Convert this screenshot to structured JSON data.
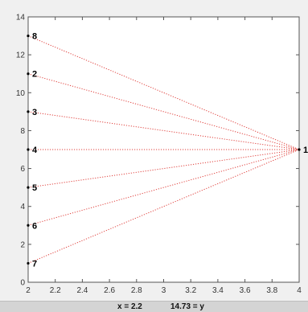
{
  "chart_data": {
    "type": "scatter",
    "title": "",
    "xlabel": "",
    "ylabel": "",
    "xlim": [
      2,
      4
    ],
    "ylim": [
      0,
      14
    ],
    "xticks": [
      "2",
      "2.2",
      "2.4",
      "2.6",
      "2.8",
      "3",
      "3.2",
      "3.4",
      "3.6",
      "3.8",
      "4"
    ],
    "yticks": [
      "0",
      "2",
      "4",
      "6",
      "8",
      "10",
      "12",
      "14"
    ],
    "grid": false,
    "edge_color": "#e0403c",
    "edge_style": "dotted",
    "nodes": [
      {
        "label": "8",
        "x": 2,
        "y": 13
      },
      {
        "label": "2",
        "x": 2,
        "y": 11
      },
      {
        "label": "3",
        "x": 2,
        "y": 9
      },
      {
        "label": "4",
        "x": 2,
        "y": 7
      },
      {
        "label": "5",
        "x": 2,
        "y": 5
      },
      {
        "label": "6",
        "x": 2,
        "y": 3
      },
      {
        "label": "7",
        "x": 2,
        "y": 1
      },
      {
        "label": "1",
        "x": 4,
        "y": 7
      }
    ],
    "edges": [
      [
        "8",
        "1"
      ],
      [
        "2",
        "1"
      ],
      [
        "3",
        "1"
      ],
      [
        "4",
        "1"
      ],
      [
        "5",
        "1"
      ],
      [
        "6",
        "1"
      ],
      [
        "7",
        "1"
      ]
    ]
  },
  "status": {
    "x_readout": "x = 2.2",
    "y_readout": "14.73 = y"
  }
}
